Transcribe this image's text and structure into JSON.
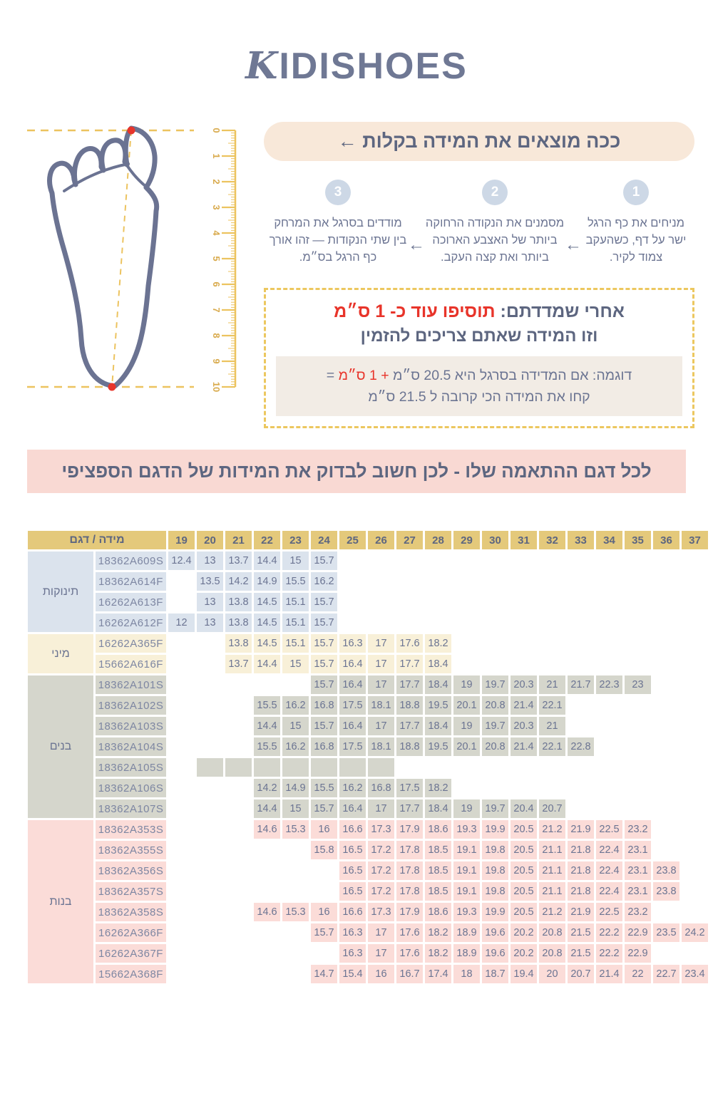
{
  "colors": {
    "gold": "#ecc35f",
    "foot": "#6b7392",
    "red": "#e8352b",
    "ruler_text": "#d9ab4e",
    "accent_slate": "#5d6680",
    "banner_peach": "#f8e8d9",
    "banner_pink": "#f9d9d3"
  },
  "brand": {
    "logo_k": "K",
    "logo_rest": "IDISHOES"
  },
  "howto": {
    "banner": "ככה מוצאים את המידה בקלות ←",
    "arrow": "←",
    "steps": [
      {
        "num": "1",
        "text": "מניחים את כף הרגל ישר על דף, כשהעקב צמוד לקיר."
      },
      {
        "num": "2",
        "text": "מסמנים את הנקודה הרחוקה ביותר של האצבע הארוכה ביותר ואת קצה העקב."
      },
      {
        "num": "3",
        "text": "מודדים בסרגל את המרחק בין שתי הנקודות — זהו אורך כף הרגל בס״מ."
      }
    ]
  },
  "note": {
    "line1_label": "אחרי שמדדתם: ",
    "line1_red": "תוסיפו עוד כ- 1 ס״מ",
    "line2": "וזו המידה שאתם צריכים להזמין",
    "example_text": "דוגמה: אם המדידה בסרגל היא 20.5 ס״מ ",
    "example_red": "+ 1 ס״מ",
    "example_eq": " =",
    "example_line2": "קחו את המידה הכי קרובה ל 21.5 ס״מ"
  },
  "notice_banner": "לכל דגם ההתאמה שלו - לכן חשוב לבדוק את המידות של הדגם הספציפי",
  "ruler_numbers": [
    "0",
    "1",
    "2",
    "3",
    "4",
    "5",
    "6",
    "7",
    "8",
    "9",
    "10"
  ],
  "size_table": {
    "header_label": "מידה / דגם",
    "sizes": [
      "19",
      "20",
      "21",
      "22",
      "23",
      "24",
      "25",
      "26",
      "27",
      "28",
      "29",
      "30",
      "31",
      "32",
      "33",
      "34",
      "35",
      "36",
      "37"
    ],
    "groups": [
      {
        "label": "תינוקות",
        "color": "c-blue",
        "rows": [
          {
            "model": "18362A609S",
            "cells": {
              "19": "12.4",
              "20": "13",
              "21": "13.7",
              "22": "14.4",
              "23": "15",
              "24": "15.7"
            }
          },
          {
            "model": "18362A614F",
            "cells": {
              "20": "13.5",
              "21": "14.2",
              "22": "14.9",
              "23": "15.5",
              "24": "16.2"
            }
          },
          {
            "model": "16262A613F",
            "cells": {
              "20": "13",
              "21": "13.8",
              "22": "14.5",
              "23": "15.1",
              "24": "15.7"
            }
          },
          {
            "model": "16262A612F",
            "cells": {
              "19": "12",
              "20": "13",
              "21": "13.8",
              "22": "14.5",
              "23": "15.1",
              "24": "15.7"
            }
          }
        ]
      },
      {
        "label": "מיני",
        "color": "c-cream",
        "rows": [
          {
            "model": "16262A365F",
            "cells": {
              "21": "13.8",
              "22": "14.5",
              "23": "15.1",
              "24": "15.7",
              "25": "16.3",
              "26": "17",
              "27": "17.6",
              "28": "18.2"
            }
          },
          {
            "model": "15662A616F",
            "cells": {
              "21": "13.7",
              "22": "14.4",
              "23": "15",
              "24": "15.7",
              "25": "16.4",
              "26": "17",
              "27": "17.7",
              "28": "18.4"
            }
          }
        ]
      },
      {
        "label": "בנים",
        "color": "c-gray",
        "rows": [
          {
            "model": "18362A101S",
            "cells": {
              "24": "15.7",
              "25": "16.4",
              "26": "17",
              "27": "17.7",
              "28": "18.4",
              "29": "19",
              "30": "19.7",
              "31": "20.3",
              "32": "21",
              "33": "21.7",
              "34": "22.3",
              "35": "23"
            }
          },
          {
            "model": "18362A102S",
            "cells": {
              "22": "15.5",
              "23": "16.2",
              "24": "16.8",
              "25": "17.5",
              "26": "18.1",
              "27": "18.8",
              "28": "19.5",
              "29": "20.1",
              "30": "20.8",
              "31": "21.4",
              "32": "22.1"
            }
          },
          {
            "model": "18362A103S",
            "cells": {
              "22": "14.4",
              "23": "15",
              "24": "15.7",
              "25": "16.4",
              "26": "17",
              "27": "17.7",
              "28": "18.4",
              "29": "19",
              "30": "19.7",
              "31": "20.3",
              "32": "21"
            }
          },
          {
            "model": "18362A104S",
            "cells": {
              "22": "15.5",
              "23": "16.2",
              "24": "16.8",
              "25": "17.5",
              "26": "18.1",
              "27": "18.8",
              "28": "19.5",
              "29": "20.1",
              "30": "20.8",
              "31": "21.4",
              "32": "22.1",
              "33": "22.8"
            }
          },
          {
            "model": "18362A105S",
            "cells": {
              "20": "",
              "21": "",
              "22": "",
              "23": "",
              "24": "",
              "25": "",
              "26": ""
            }
          },
          {
            "model": "18362A106S",
            "cells": {
              "22": "14.2",
              "23": "14.9",
              "24": "15.5",
              "25": "16.2",
              "26": "16.8",
              "27": "17.5",
              "28": "18.2"
            }
          },
          {
            "model": "18362A107S",
            "cells": {
              "22": "14.4",
              "23": "15",
              "24": "15.7",
              "25": "16.4",
              "26": "17",
              "27": "17.7",
              "28": "18.4",
              "29": "19",
              "30": "19.7",
              "31": "20.4",
              "32": "20.7"
            }
          }
        ]
      },
      {
        "label": "בנות",
        "color": "c-pink",
        "rows": [
          {
            "model": "18362A353S",
            "cells": {
              "22": "14.6",
              "23": "15.3",
              "24": "16",
              "25": "16.6",
              "26": "17.3",
              "27": "17.9",
              "28": "18.6",
              "29": "19.3",
              "30": "19.9",
              "31": "20.5",
              "32": "21.2",
              "33": "21.9",
              "34": "22.5",
              "35": "23.2"
            }
          },
          {
            "model": "18362A355S",
            "cells": {
              "24": "15.8",
              "25": "16.5",
              "26": "17.2",
              "27": "17.8",
              "28": "18.5",
              "29": "19.1",
              "30": "19.8",
              "31": "20.5",
              "32": "21.1",
              "33": "21.8",
              "34": "22.4",
              "35": "23.1"
            }
          },
          {
            "model": "18362A356S",
            "cells": {
              "25": "16.5",
              "26": "17.2",
              "27": "17.8",
              "28": "18.5",
              "29": "19.1",
              "30": "19.8",
              "31": "20.5",
              "32": "21.1",
              "33": "21.8",
              "34": "22.4",
              "35": "23.1",
              "36": "23.8"
            }
          },
          {
            "model": "18362A357S",
            "cells": {
              "25": "16.5",
              "26": "17.2",
              "27": "17.8",
              "28": "18.5",
              "29": "19.1",
              "30": "19.8",
              "31": "20.5",
              "32": "21.1",
              "33": "21.8",
              "34": "22.4",
              "35": "23.1",
              "36": "23.8"
            }
          },
          {
            "model": "18362A358S",
            "cells": {
              "22": "14.6",
              "23": "15.3",
              "24": "16",
              "25": "16.6",
              "26": "17.3",
              "27": "17.9",
              "28": "18.6",
              "29": "19.3",
              "30": "19.9",
              "31": "20.5",
              "32": "21.2",
              "33": "21.9",
              "34": "22.5",
              "35": "23.2"
            }
          },
          {
            "model": "16262A366F",
            "cells": {
              "24": "15.7",
              "25": "16.3",
              "26": "17",
              "27": "17.6",
              "28": "18.2",
              "29": "18.9",
              "30": "19.6",
              "31": "20.2",
              "32": "20.8",
              "33": "21.5",
              "34": "22.2",
              "35": "22.9",
              "36": "23.5",
              "37": "24.2"
            }
          },
          {
            "model": "16262A367F",
            "cells": {
              "25": "16.3",
              "26": "17",
              "27": "17.6",
              "28": "18.2",
              "29": "18.9",
              "30": "19.6",
              "31": "20.2",
              "32": "20.8",
              "33": "21.5",
              "34": "22.2",
              "35": "22.9"
            }
          },
          {
            "model": "15662A368F",
            "cells": {
              "24": "14.7",
              "25": "15.4",
              "26": "16",
              "27": "16.7",
              "28": "17.4",
              "29": "18",
              "30": "18.7",
              "31": "19.4",
              "32": "20",
              "33": "20.7",
              "34": "21.4",
              "35": "22",
              "36": "22.7",
              "37": "23.4"
            }
          }
        ]
      }
    ]
  }
}
